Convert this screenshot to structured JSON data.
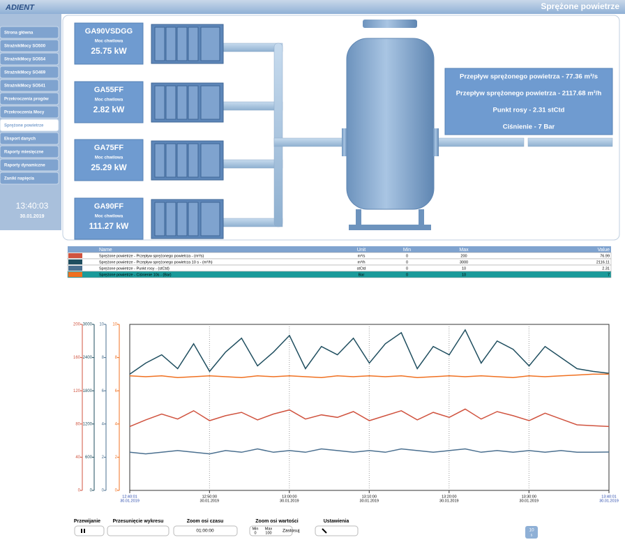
{
  "header": {
    "logo": "ADIENT",
    "title": "Sprężone powietrze"
  },
  "sidebar": {
    "items": [
      "Strona główna",
      "StrażnikMocy SO500",
      "StrażnikMocy SO554",
      "StrażnikMocy SO469",
      "StrażnikMocy SO541",
      "Przekroczenia progów",
      "Przekroczenia Mocy",
      "Sprężone powietrze",
      "Eksport danych",
      "Raporty miesięczne",
      "Raporty dynamiczne",
      "Zaniki napięcia"
    ],
    "time": "13:40:03",
    "date": "30.01.2019"
  },
  "compressors": [
    {
      "name": "GA90VSDGG",
      "label": "Moc chwilowa",
      "value": "25.75 kW"
    },
    {
      "name": "GA55FF",
      "label": "Moc chwilowa",
      "value": "2.82 kW"
    },
    {
      "name": "GA75FF",
      "label": "Moc chwilowa",
      "value": "25.29 kW"
    },
    {
      "name": "GA90FF",
      "label": "Moc chwilowa",
      "value": "111.27 kW"
    }
  ],
  "tank_info": [
    "Przepływ sprężonego powietrza - 77.36 m³/s",
    "Przepływ sprężonego powietrza - 2117.68 m³/h",
    "Punkt rosy - 2.31 stCtd",
    "Ciśnienie - 7 Bar"
  ],
  "table": {
    "headers": [
      "Name",
      "Unit",
      "Min",
      "Max",
      "Value"
    ],
    "row_colors": [
      "#d0533f",
      "#1f4e5f",
      "#4a6f8f",
      "#f07020"
    ],
    "rows": [
      [
        "Sprężone powietrze - Przepływ sprężonego powietrza - (m³/s)",
        "m³/s",
        "0",
        "200",
        "76.99"
      ],
      [
        "Sprężone powietrze - Przepływ sprężonego powietrza 10 s - (m³/h)",
        "m³/h",
        "0",
        "3000",
        "2116.11"
      ],
      [
        "Sprężone powietrze - Punkt rosy - (stCtd)",
        "stCtd",
        "0",
        "10",
        "2.31"
      ],
      [
        "Sprężone powietrze - Ciśnienie 10s - (Bar)",
        "Bar",
        "0",
        "10",
        "7"
      ]
    ]
  },
  "chart_data": {
    "type": "line",
    "grid": true,
    "x": [
      "12:40:01",
      "12:42:01",
      "12:44:01",
      "12:46:01",
      "12:48:01",
      "12:50:01",
      "12:52:01",
      "12:54:01",
      "12:56:01",
      "12:58:01",
      "13:00:01",
      "13:02:01",
      "13:04:01",
      "13:06:01",
      "13:08:01",
      "13:10:01",
      "13:12:01",
      "13:14:01",
      "13:16:01",
      "13:18:01",
      "13:20:01",
      "13:22:01",
      "13:24:01",
      "13:26:01",
      "13:28:01",
      "13:30:01",
      "13:32:01",
      "13:34:01",
      "13:36:01",
      "13:38:01",
      "13:40:01"
    ],
    "xlim": [
      "12:40:01",
      "13:40:01"
    ],
    "xticks": [
      "12:40:01",
      "12:50:00",
      "13:00:00",
      "13:10:00",
      "13:20:00",
      "13:30:00",
      "13:40:01"
    ],
    "x_date": "30.01.2019",
    "series": [
      {
        "color": "#d0533f",
        "ylim": [
          0,
          200
        ],
        "yticks": [
          0,
          40,
          80,
          120,
          160,
          200
        ],
        "values": [
          77,
          85,
          92,
          86,
          96,
          84,
          90,
          94,
          85,
          92,
          97,
          86,
          91,
          88,
          95,
          84,
          90,
          96,
          85,
          94,
          88,
          98,
          86,
          95,
          90,
          84,
          93,
          86,
          79,
          78,
          76.99
        ]
      },
      {
        "color": "#1f4e5f",
        "ylim": [
          0,
          3000
        ],
        "yticks": [
          0,
          600,
          1200,
          1800,
          2400,
          3000
        ],
        "values": [
          2100,
          2300,
          2450,
          2200,
          2650,
          2150,
          2500,
          2750,
          2250,
          2500,
          2800,
          2200,
          2600,
          2450,
          2750,
          2300,
          2650,
          2850,
          2200,
          2600,
          2450,
          2900,
          2300,
          2700,
          2550,
          2250,
          2600,
          2400,
          2200,
          2150,
          2116.11
        ]
      },
      {
        "color": "#4a6f8f",
        "ylim": [
          0,
          10
        ],
        "yticks": [
          0,
          2,
          4,
          6,
          8,
          10
        ],
        "values": [
          2.3,
          2.2,
          2.3,
          2.4,
          2.3,
          2.2,
          2.4,
          2.3,
          2.5,
          2.3,
          2.4,
          2.3,
          2.5,
          2.4,
          2.3,
          2.4,
          2.3,
          2.5,
          2.4,
          2.3,
          2.4,
          2.5,
          2.3,
          2.4,
          2.3,
          2.4,
          2.3,
          2.4,
          2.3,
          2.3,
          2.31
        ]
      },
      {
        "color": "#f07020",
        "ylim": [
          0,
          10
        ],
        "yticks": [
          0,
          2,
          4,
          6,
          8,
          10
        ],
        "values": [
          6.9,
          6.85,
          6.9,
          6.8,
          6.85,
          6.9,
          6.85,
          6.8,
          6.9,
          6.85,
          6.9,
          6.85,
          6.8,
          6.9,
          6.85,
          6.9,
          6.85,
          6.9,
          6.8,
          6.85,
          6.9,
          6.85,
          6.9,
          6.85,
          6.8,
          6.9,
          6.85,
          6.9,
          6.95,
          7,
          7
        ]
      }
    ]
  },
  "controls": {
    "scroll": "Przewijanie",
    "shift": "Przesunięcie wykresu",
    "time_zoom": "Zoom osi czasu",
    "time_zoom_value": "01:00:00",
    "value_zoom": "Zoom osi wartości",
    "min_label": "Min",
    "min_value": "0",
    "max_label": "Max",
    "max_value": "100",
    "apply": "Zastosuj",
    "settings": "Ustawienia",
    "refresh": "10",
    "refresh_unit": "s"
  }
}
